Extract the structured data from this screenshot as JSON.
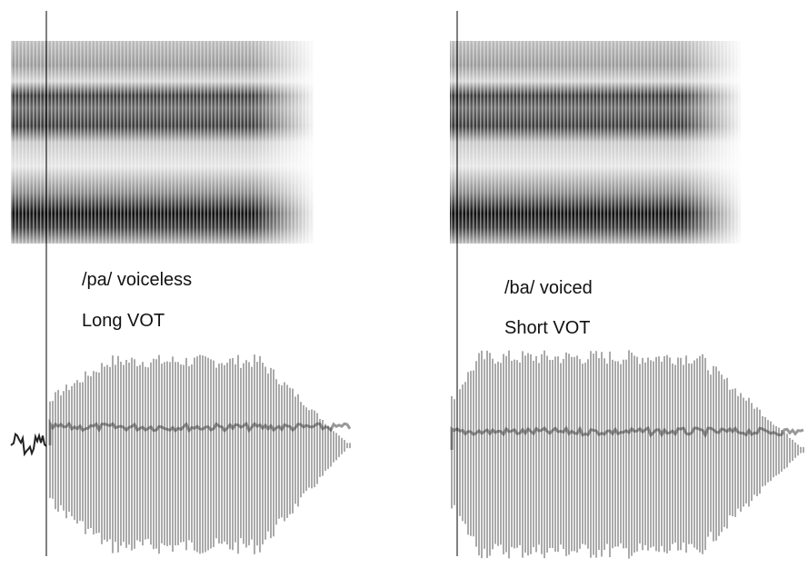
{
  "panels": [
    {
      "label": "/pa/ voiceless",
      "vot": "Long VOT"
    },
    {
      "label": "/ba/ voiced",
      "vot": "Short VOT"
    }
  ]
}
